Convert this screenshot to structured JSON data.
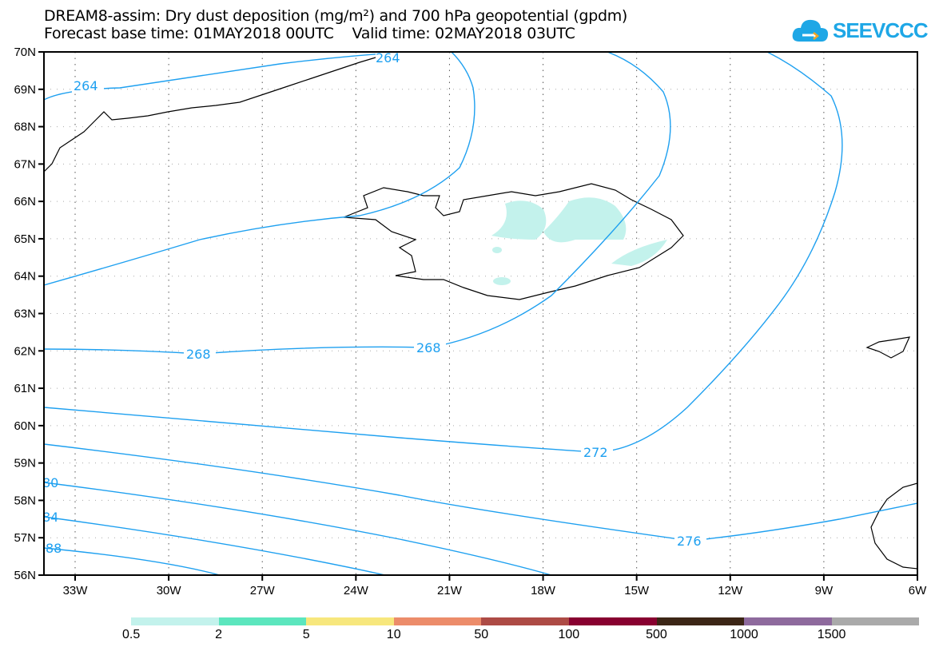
{
  "header": {
    "title": "DREAM8-assim: Dry dust deposition (mg/m²) and 700 hPa geopotential (gpdm)",
    "subtitle": "Forecast base time: 01MAY2018 00UTC    Valid time: 02MAY2018 03UTC",
    "logo": "SEEVCCC"
  },
  "axes": {
    "lat_labels": [
      "70N",
      "69N",
      "68N",
      "67N",
      "66N",
      "65N",
      "64N",
      "63N",
      "62N",
      "61N",
      "60N",
      "59N",
      "58N",
      "57N",
      "56N"
    ],
    "lon_labels": [
      "33W",
      "30W",
      "27W",
      "24W",
      "21W",
      "18W",
      "15W",
      "12W",
      "9W",
      "6W"
    ]
  },
  "contour_labels": {
    "c264a": "264",
    "c264b": "264",
    "c268a": "268",
    "c268b": "268",
    "c272": "272",
    "c276": "276",
    "c280": "80",
    "c284": "84",
    "c288": "88"
  },
  "colorbar": {
    "labels": [
      "0.5",
      "2",
      "5",
      "10",
      "50",
      "100",
      "500",
      "1000",
      "1500"
    ],
    "colors": [
      "#c3f2ec",
      "#5ce6be",
      "#f7e77d",
      "#ec8c6a",
      "#ad4b45",
      "#880030",
      "#3c2616",
      "#8e6a9d",
      "#aaaaaa"
    ]
  },
  "colors": {
    "contour": "#1ea0f0",
    "dust": "#c3f2ec"
  }
}
